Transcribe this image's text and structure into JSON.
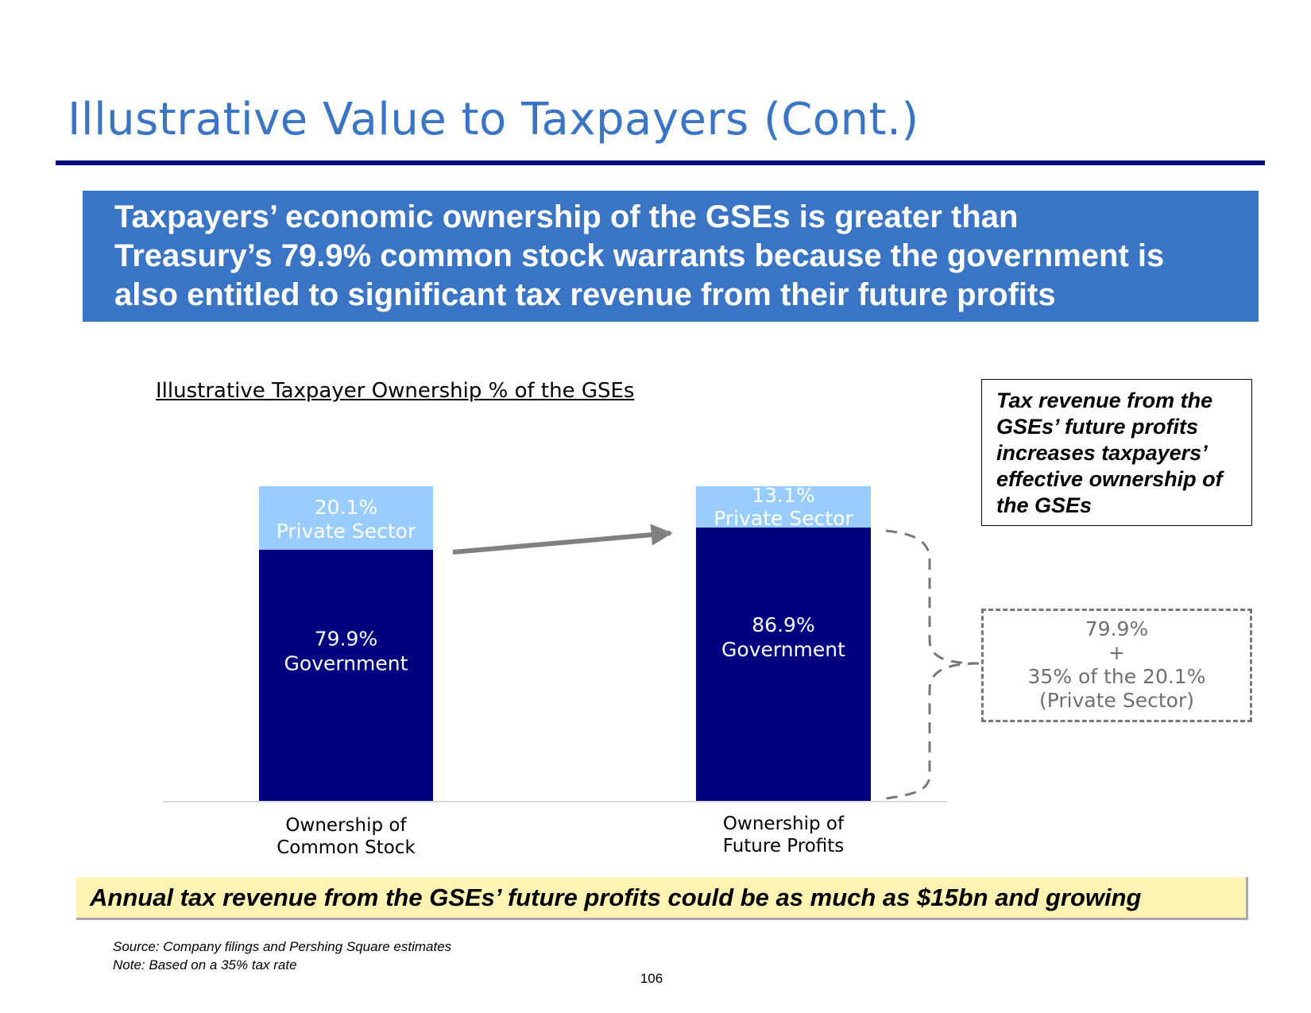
{
  "title": "Illustrative Value to Taxpayers (Cont.)",
  "banner": {
    "lines": [
      "Taxpayers’ economic ownership of the GSEs is greater than",
      "Treasury’s 79.9% common stock warrants because the government is",
      "also entitled to significant tax revenue from their future profits"
    ]
  },
  "callout": {
    "lines": [
      "Tax revenue from the",
      "GSEs’ future profits",
      "increases taxpayers’",
      "effective ownership of",
      "the GSEs"
    ]
  },
  "formula": {
    "lines": [
      "79.9%",
      "+",
      "35% of the 20.1%",
      "(Private Sector)"
    ]
  },
  "footer_banner": "Annual tax revenue from the GSEs’ future profits could be as much as $15bn and growing",
  "notes": {
    "source": "Source: Company filings and Pershing Square estimates",
    "note": "Note: Based on a 35% tax rate"
  },
  "page_number": "106",
  "colors": {
    "title": "#3a74c4",
    "rule": "#000b7f",
    "banner": "#3a74c4",
    "government": "#000080",
    "private_sector": "#99ccff",
    "arrow": "#808080",
    "dashed": "#777777",
    "footer_banner": "#fff3b3"
  },
  "chart_data": {
    "type": "bar",
    "stacked": true,
    "title": "Illustrative Taxpayer Ownership % of the GSEs",
    "categories": [
      [
        "Ownership of",
        "Common Stock"
      ],
      [
        "Ownership of",
        "Future Profits"
      ]
    ],
    "series": [
      {
        "name": "Government",
        "values": [
          79.9,
          86.9
        ],
        "labels": [
          [
            "79.9%",
            "Government"
          ],
          [
            "86.9%",
            "Government"
          ]
        ]
      },
      {
        "name": "Private Sector",
        "values": [
          20.1,
          13.1
        ],
        "labels": [
          [
            "20.1%",
            "Private Sector"
          ],
          [
            "13.1%",
            "Private Sector"
          ]
        ]
      }
    ],
    "ylim": [
      0,
      100
    ],
    "xlabel": "",
    "ylabel": "",
    "grid": false,
    "legend": "none"
  }
}
